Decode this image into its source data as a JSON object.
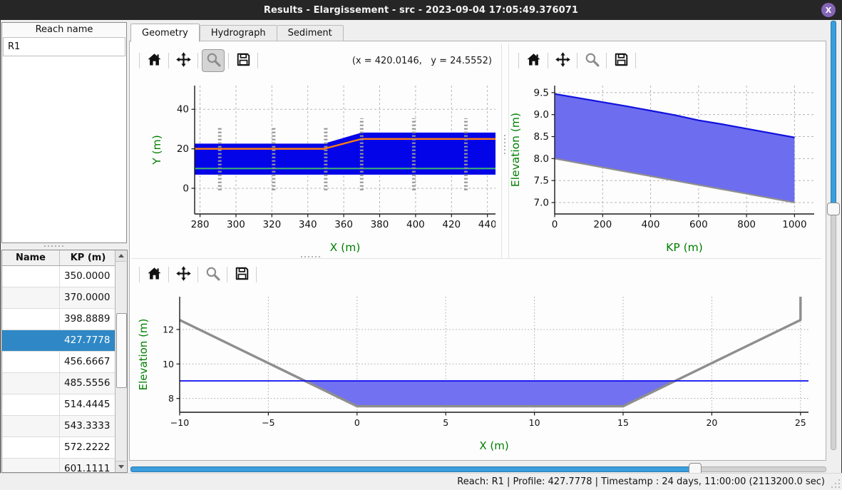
{
  "window": {
    "title": "Results - Elargissement - src - 2023-09-04 17:05:49.376071",
    "close_label": "X"
  },
  "colors": {
    "titlebar": "#262626",
    "close_button": "#8566b6",
    "selection_blue": "#2f88c5",
    "slider_blue": "#3b9ddc",
    "axis_label_green": "#007f00",
    "channel_blue": "#0404e8",
    "water_fill": "#6d6df0",
    "water_line": "#1111dd",
    "bed_gray": "#8e8e8e",
    "orange_line": "#ff7f0e",
    "green_line": "#3cb371"
  },
  "sidebar": {
    "reach_header": "Reach name",
    "reaches": [
      "R1"
    ],
    "profile_table": {
      "columns": [
        "Name",
        "KP (m)"
      ],
      "rows": [
        {
          "name": "",
          "kp": "350.0000",
          "selected": false
        },
        {
          "name": "",
          "kp": "370.0000",
          "selected": false
        },
        {
          "name": "",
          "kp": "398.8889",
          "selected": false
        },
        {
          "name": "",
          "kp": "427.7778",
          "selected": true
        },
        {
          "name": "",
          "kp": "456.6667",
          "selected": false
        },
        {
          "name": "",
          "kp": "485.5556",
          "selected": false
        },
        {
          "name": "",
          "kp": "514.4445",
          "selected": false
        },
        {
          "name": "",
          "kp": "543.3333",
          "selected": false
        },
        {
          "name": "",
          "kp": "572.2222",
          "selected": false
        },
        {
          "name": "",
          "kp": "601.1111",
          "selected": false
        }
      ]
    }
  },
  "tabs": [
    {
      "label": "Geometry",
      "active": true
    },
    {
      "label": "Hydrograph",
      "active": false
    },
    {
      "label": "Sediment",
      "active": false
    }
  ],
  "toolbar": {
    "icons": [
      "home",
      "pan",
      "zoom",
      "save"
    ],
    "coordinates": "(x = 420.0146,   y = 24.5552)"
  },
  "status_bar": {
    "text": "Reach: R1 | Profile: 427.7778 | Timestamp : 24 days, 11:00:00 (2113200.0 sec)"
  },
  "chart_data": [
    {
      "id": "plan-view",
      "type": "area",
      "title": "",
      "xlabel": "X (m)",
      "ylabel": "Y (m)",
      "xlim": [
        277,
        444.5
      ],
      "ylim": [
        -13,
        52
      ],
      "xticks": [
        280,
        300,
        320,
        340,
        360,
        380,
        400,
        420,
        440
      ],
      "xtick_labels": [
        "280",
        "300",
        "320",
        "340",
        "360",
        "380",
        "400",
        "420",
        "440"
      ],
      "yticks": [
        0,
        20,
        40
      ],
      "ytick_labels": [
        "0",
        "20",
        "40"
      ],
      "grid": {
        "color": "#b6b6b6",
        "dash": "3 3"
      },
      "series": [
        {
          "name": "channel-band",
          "type": "band",
          "color": "#0404e8",
          "upper": [
            [
              277,
              22.6
            ],
            [
              349,
              22.6
            ],
            [
              370,
              28.2
            ],
            [
              444.5,
              28.2
            ]
          ],
          "lower": [
            [
              277,
              6.9
            ],
            [
              444.5,
              6.9
            ]
          ]
        },
        {
          "name": "channel-axis-line",
          "type": "line",
          "color": "#ff7f0e",
          "width": 2.4,
          "points": [
            [
              277,
              20
            ],
            [
              349,
              20
            ],
            [
              370,
              25
            ],
            [
              444.5,
              25
            ]
          ]
        },
        {
          "name": "reference-line",
          "type": "line",
          "color": "#3cb371",
          "width": 2,
          "points": [
            [
              277,
              10
            ],
            [
              444.5,
              10
            ]
          ]
        },
        {
          "name": "profile-markers",
          "type": "vmarkers",
          "color": "#969696",
          "width": 5,
          "dash": "2.2 2.8",
          "x": [
            291,
            321,
            350,
            370,
            399,
            428
          ],
          "y0": -1,
          "y1": [
            30.5,
            30.5,
            30.5,
            35.5,
            35.5,
            35.5
          ]
        }
      ]
    },
    {
      "id": "long-profile",
      "type": "area",
      "title": "",
      "xlabel": "KP (m)",
      "ylabel": "Elevation (m)",
      "xlim": [
        0,
        1082
      ],
      "ylim": [
        6.74,
        9.66
      ],
      "xticks": [
        0,
        200,
        400,
        600,
        800,
        1000
      ],
      "xtick_labels": [
        "0",
        "200",
        "400",
        "600",
        "800",
        "1000"
      ],
      "yticks": [
        7.0,
        7.5,
        8.0,
        8.5,
        9.0,
        9.5
      ],
      "ytick_labels": [
        "7.0",
        "7.5",
        "8.0",
        "8.5",
        "9.0",
        "9.5"
      ],
      "grid": {
        "color": "#b6b6b6",
        "dash": "3 3"
      },
      "series": [
        {
          "name": "water-band",
          "type": "band",
          "color": "#6d6df0",
          "upper": [
            [
              0,
              9.47
            ],
            [
              150,
              9.33
            ],
            [
              300,
              9.19
            ],
            [
              400,
              9.09
            ],
            [
              500,
              8.99
            ],
            [
              600,
              8.87
            ],
            [
              700,
              8.78
            ],
            [
              800,
              8.68
            ],
            [
              900,
              8.58
            ],
            [
              1000,
              8.48
            ]
          ],
          "lower": [
            [
              0,
              8.0
            ],
            [
              1000,
              7.0
            ]
          ]
        },
        {
          "name": "water-surface-line",
          "type": "line",
          "color": "#1111dd",
          "width": 2.2,
          "points": [
            [
              0,
              9.47
            ],
            [
              150,
              9.33
            ],
            [
              300,
              9.19
            ],
            [
              400,
              9.09
            ],
            [
              500,
              8.99
            ],
            [
              600,
              8.87
            ],
            [
              700,
              8.78
            ],
            [
              800,
              8.68
            ],
            [
              900,
              8.58
            ],
            [
              1000,
              8.48
            ]
          ]
        },
        {
          "name": "bed-line",
          "type": "line",
          "color": "#8e8e8e",
          "width": 2.2,
          "points": [
            [
              0,
              8.0
            ],
            [
              1000,
              7.0
            ]
          ]
        }
      ]
    },
    {
      "id": "cross-section",
      "type": "area",
      "title": "",
      "xlabel": "X (m)",
      "ylabel": "Elevation (m)",
      "xlim": [
        -10,
        25.45
      ],
      "ylim": [
        7.2,
        13.9
      ],
      "xticks": [
        -10,
        -5,
        0,
        5,
        10,
        15,
        20,
        25
      ],
      "xtick_labels": [
        "−10",
        "−5",
        "0",
        "5",
        "10",
        "15",
        "20",
        "25"
      ],
      "yticks": [
        8,
        10,
        12
      ],
      "ytick_labels": [
        "8",
        "10",
        "12"
      ],
      "grid": {
        "color": "#ababab",
        "dash": "1.6 2.8"
      },
      "series": [
        {
          "name": "water-fill",
          "type": "poly",
          "color": "#7171f1",
          "points": [
            [
              -3.1,
              9.02
            ],
            [
              18.05,
              9.02
            ],
            [
              15,
              7.55
            ],
            [
              0,
              7.55
            ]
          ]
        },
        {
          "name": "bed-line",
          "type": "line",
          "color": "#8e8e8e",
          "width": 3.4,
          "points": [
            [
              -10,
              12.55
            ],
            [
              0,
              7.55
            ],
            [
              15,
              7.55
            ],
            [
              25,
              12.55
            ],
            [
              25,
              13.9
            ]
          ]
        },
        {
          "name": "water-surface-line",
          "type": "line",
          "color": "#0a0af0",
          "width": 1.8,
          "points": [
            [
              -10,
              9.02
            ],
            [
              25.45,
              9.02
            ]
          ]
        }
      ]
    }
  ]
}
